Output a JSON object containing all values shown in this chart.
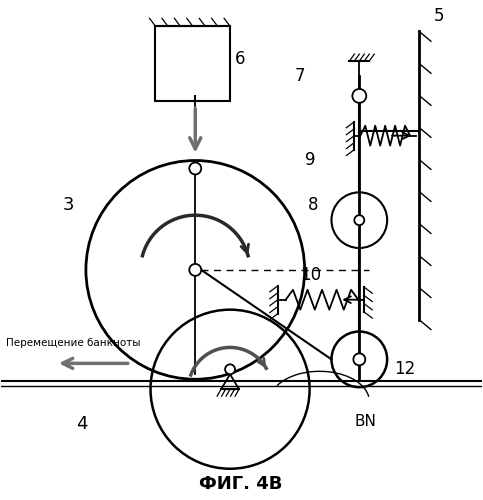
{
  "title": "ФИГ. 4В",
  "bg_color": "#ffffff",
  "label_move": "Перемещение банкноты",
  "label_bn": "BN",
  "label_3": "3",
  "label_4": "4",
  "label_5": "5",
  "label_6": "6",
  "label_7": "7",
  "label_8": "8",
  "label_9": "9",
  "label_10": "10",
  "label_12": "12"
}
